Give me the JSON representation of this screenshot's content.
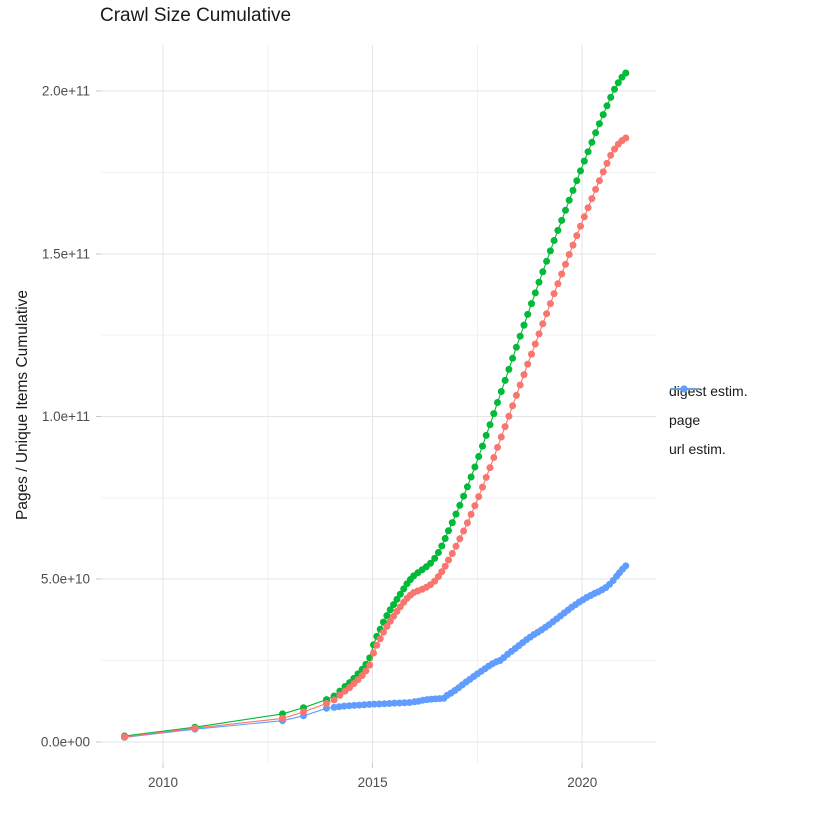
{
  "chart_data": {
    "type": "line-scatter",
    "title": "Crawl Size Cumulative",
    "xlabel": "",
    "ylabel": "Pages / Unique Items Cumulative",
    "grid": true,
    "legend_position": "right",
    "x_domain": [
      2008.52,
      2021.76
    ],
    "y_domain_e9": [
      -6.5,
      214.2
    ],
    "x_major_ticks": [
      {
        "value": 2010,
        "label": "2010"
      },
      {
        "value": 2015,
        "label": "2015"
      },
      {
        "value": 2020,
        "label": "2020"
      }
    ],
    "x_minor_ticks": [
      2012.5,
      2017.5
    ],
    "y_major_ticks_e9": [
      {
        "value": 0,
        "label": "0.0e+00"
      },
      {
        "value": 50,
        "label": "5.0e+10"
      },
      {
        "value": 100,
        "label": "1.0e+11"
      },
      {
        "value": 150,
        "label": "1.5e+11"
      },
      {
        "value": 200,
        "label": "2.0e+11"
      }
    ],
    "y_minor_ticks_e9": [
      25,
      75,
      125,
      175
    ],
    "draw_order": [
      1,
      2,
      0
    ],
    "series": [
      {
        "name": "digest estim.",
        "color": "#F8766D",
        "points": [
          [
            2009.08,
            1.5
          ],
          [
            2010.76,
            4.2
          ],
          [
            2012.85,
            7.2
          ],
          [
            2013.35,
            9.2
          ],
          [
            2013.9,
            11.8
          ],
          [
            2014.08,
            12.9
          ],
          [
            2014.22,
            14.3
          ],
          [
            2014.34,
            15.6
          ],
          [
            2014.45,
            16.7
          ],
          [
            2014.55,
            17.9
          ],
          [
            2014.65,
            19.1
          ],
          [
            2014.75,
            20.4
          ],
          [
            2014.84,
            21.8
          ],
          [
            2014.93,
            23.6
          ],
          [
            2015.02,
            27.3
          ],
          [
            2015.1,
            29.7
          ],
          [
            2015.18,
            31.7
          ],
          [
            2015.26,
            33.7
          ],
          [
            2015.34,
            35.5
          ],
          [
            2015.42,
            37.1
          ],
          [
            2015.5,
            38.6
          ],
          [
            2015.58,
            40.1
          ],
          [
            2015.66,
            41.5
          ],
          [
            2015.74,
            42.9
          ],
          [
            2015.82,
            44.1
          ],
          [
            2015.9,
            45.1
          ],
          [
            2015.98,
            45.9
          ],
          [
            2016.08,
            46.4
          ],
          [
            2016.18,
            46.9
          ],
          [
            2016.28,
            47.5
          ],
          [
            2016.38,
            48.3
          ],
          [
            2016.48,
            49.4
          ],
          [
            2016.57,
            50.8
          ],
          [
            2016.65,
            52.3
          ],
          [
            2016.73,
            54.0
          ],
          [
            2016.81,
            55.9
          ],
          [
            2016.9,
            57.9
          ],
          [
            2016.99,
            60.1
          ],
          [
            2017.08,
            62.4
          ],
          [
            2017.17,
            64.8
          ],
          [
            2017.26,
            67.3
          ],
          [
            2017.35,
            69.9
          ],
          [
            2017.44,
            72.6
          ],
          [
            2017.53,
            75.4
          ],
          [
            2017.62,
            78.3
          ],
          [
            2017.71,
            81.3
          ],
          [
            2017.8,
            84.3
          ],
          [
            2017.89,
            87.4
          ],
          [
            2017.98,
            90.5
          ],
          [
            2018.07,
            93.7
          ],
          [
            2018.16,
            96.9
          ],
          [
            2018.25,
            100.1
          ],
          [
            2018.34,
            103.3
          ],
          [
            2018.43,
            106.5
          ],
          [
            2018.52,
            109.7
          ],
          [
            2018.61,
            112.9
          ],
          [
            2018.7,
            116.1
          ],
          [
            2018.79,
            119.2
          ],
          [
            2018.88,
            122.3
          ],
          [
            2018.97,
            125.4
          ],
          [
            2019.06,
            128.5
          ],
          [
            2019.15,
            131.6
          ],
          [
            2019.24,
            134.7
          ],
          [
            2019.33,
            137.8
          ],
          [
            2019.42,
            140.8
          ],
          [
            2019.51,
            143.8
          ],
          [
            2019.6,
            146.8
          ],
          [
            2019.69,
            149.8
          ],
          [
            2019.78,
            152.7
          ],
          [
            2019.87,
            155.6
          ],
          [
            2019.96,
            158.5
          ],
          [
            2020.05,
            161.4
          ],
          [
            2020.14,
            164.2
          ],
          [
            2020.23,
            167.0
          ],
          [
            2020.32,
            169.8
          ],
          [
            2020.41,
            172.5
          ],
          [
            2020.5,
            175.2
          ],
          [
            2020.59,
            177.8
          ],
          [
            2020.68,
            180.3
          ],
          [
            2020.77,
            182.2
          ],
          [
            2020.86,
            183.7
          ],
          [
            2020.95,
            184.8
          ],
          [
            2021.04,
            185.6
          ]
        ]
      },
      {
        "name": "page",
        "color": "#00BA38",
        "points": [
          [
            2009.08,
            1.8
          ],
          [
            2010.76,
            4.5
          ],
          [
            2012.85,
            8.6
          ],
          [
            2013.35,
            10.5
          ],
          [
            2013.9,
            13.0
          ],
          [
            2014.08,
            14.1
          ],
          [
            2014.22,
            15.6
          ],
          [
            2014.34,
            17.0
          ],
          [
            2014.45,
            18.2
          ],
          [
            2014.55,
            19.5
          ],
          [
            2014.65,
            20.9
          ],
          [
            2014.75,
            22.3
          ],
          [
            2014.84,
            23.8
          ],
          [
            2014.93,
            25.8
          ],
          [
            2015.02,
            29.8
          ],
          [
            2015.1,
            32.4
          ],
          [
            2015.18,
            34.6
          ],
          [
            2015.26,
            36.8
          ],
          [
            2015.34,
            38.8
          ],
          [
            2015.42,
            40.6
          ],
          [
            2015.5,
            42.2
          ],
          [
            2015.58,
            43.8
          ],
          [
            2015.66,
            45.4
          ],
          [
            2015.74,
            47.0
          ],
          [
            2015.82,
            48.6
          ],
          [
            2015.9,
            49.9
          ],
          [
            2015.98,
            51.0
          ],
          [
            2016.08,
            52.0
          ],
          [
            2016.18,
            52.9
          ],
          [
            2016.28,
            53.8
          ],
          [
            2016.38,
            54.9
          ],
          [
            2016.48,
            56.4
          ],
          [
            2016.57,
            58.2
          ],
          [
            2016.65,
            60.2
          ],
          [
            2016.73,
            62.5
          ],
          [
            2016.81,
            64.9
          ],
          [
            2016.9,
            67.4
          ],
          [
            2016.99,
            70.0
          ],
          [
            2017.08,
            72.7
          ],
          [
            2017.17,
            75.5
          ],
          [
            2017.26,
            78.4
          ],
          [
            2017.35,
            81.4
          ],
          [
            2017.44,
            84.5
          ],
          [
            2017.53,
            87.7
          ],
          [
            2017.62,
            90.9
          ],
          [
            2017.71,
            94.2
          ],
          [
            2017.8,
            97.5
          ],
          [
            2017.89,
            100.9
          ],
          [
            2017.98,
            104.3
          ],
          [
            2018.07,
            107.7
          ],
          [
            2018.16,
            111.1
          ],
          [
            2018.25,
            114.5
          ],
          [
            2018.34,
            117.9
          ],
          [
            2018.43,
            121.3
          ],
          [
            2018.52,
            124.7
          ],
          [
            2018.61,
            128.1
          ],
          [
            2018.7,
            131.4
          ],
          [
            2018.79,
            134.7
          ],
          [
            2018.88,
            138.0
          ],
          [
            2018.97,
            141.3
          ],
          [
            2019.06,
            144.5
          ],
          [
            2019.15,
            147.7
          ],
          [
            2019.24,
            150.9
          ],
          [
            2019.33,
            154.1
          ],
          [
            2019.42,
            157.2
          ],
          [
            2019.51,
            160.3
          ],
          [
            2019.6,
            163.4
          ],
          [
            2019.69,
            166.5
          ],
          [
            2019.78,
            169.5
          ],
          [
            2019.87,
            172.5
          ],
          [
            2019.96,
            175.5
          ],
          [
            2020.05,
            178.5
          ],
          [
            2020.14,
            181.4
          ],
          [
            2020.23,
            184.3
          ],
          [
            2020.32,
            187.2
          ],
          [
            2020.41,
            190.0
          ],
          [
            2020.5,
            192.8
          ],
          [
            2020.59,
            195.5
          ],
          [
            2020.68,
            198.1
          ],
          [
            2020.77,
            200.6
          ],
          [
            2020.86,
            202.6
          ],
          [
            2020.95,
            204.3
          ],
          [
            2021.04,
            205.6
          ]
        ]
      },
      {
        "name": "url estim.",
        "color": "#619CFF",
        "points": [
          [
            2009.08,
            1.4
          ],
          [
            2010.76,
            3.9
          ],
          [
            2012.85,
            6.5
          ],
          [
            2013.35,
            8.0
          ],
          [
            2013.9,
            10.3
          ],
          [
            2014.08,
            10.6
          ],
          [
            2014.2,
            10.8
          ],
          [
            2014.32,
            11.0
          ],
          [
            2014.44,
            11.1
          ],
          [
            2014.56,
            11.2
          ],
          [
            2014.68,
            11.3
          ],
          [
            2014.8,
            11.4
          ],
          [
            2014.92,
            11.5
          ],
          [
            2015.04,
            11.6
          ],
          [
            2015.16,
            11.65
          ],
          [
            2015.28,
            11.7
          ],
          [
            2015.4,
            11.8
          ],
          [
            2015.52,
            11.9
          ],
          [
            2015.64,
            11.95
          ],
          [
            2015.76,
            12.0
          ],
          [
            2015.88,
            12.1
          ],
          [
            2016.0,
            12.3
          ],
          [
            2016.1,
            12.5
          ],
          [
            2016.2,
            12.8
          ],
          [
            2016.3,
            13.0
          ],
          [
            2016.4,
            13.1
          ],
          [
            2016.5,
            13.2
          ],
          [
            2016.6,
            13.3
          ],
          [
            2016.7,
            13.4
          ],
          [
            2016.78,
            14.3
          ],
          [
            2016.87,
            15.0
          ],
          [
            2016.96,
            15.8
          ],
          [
            2017.05,
            16.6
          ],
          [
            2017.14,
            17.5
          ],
          [
            2017.23,
            18.4
          ],
          [
            2017.32,
            19.2
          ],
          [
            2017.41,
            20.1
          ],
          [
            2017.5,
            20.9
          ],
          [
            2017.59,
            21.7
          ],
          [
            2017.68,
            22.5
          ],
          [
            2017.77,
            23.3
          ],
          [
            2017.86,
            24.0
          ],
          [
            2017.95,
            24.6
          ],
          [
            2018.04,
            25.0
          ],
          [
            2018.13,
            25.9
          ],
          [
            2018.22,
            26.9
          ],
          [
            2018.31,
            27.8
          ],
          [
            2018.4,
            28.7
          ],
          [
            2018.49,
            29.6
          ],
          [
            2018.58,
            30.5
          ],
          [
            2018.67,
            31.4
          ],
          [
            2018.76,
            32.2
          ],
          [
            2018.85,
            33.0
          ],
          [
            2018.94,
            33.7
          ],
          [
            2019.03,
            34.4
          ],
          [
            2019.12,
            35.2
          ],
          [
            2019.21,
            36.0
          ],
          [
            2019.3,
            36.9
          ],
          [
            2019.39,
            37.8
          ],
          [
            2019.48,
            38.7
          ],
          [
            2019.57,
            39.6
          ],
          [
            2019.66,
            40.5
          ],
          [
            2019.75,
            41.4
          ],
          [
            2019.84,
            42.2
          ],
          [
            2019.93,
            43.0
          ],
          [
            2020.02,
            43.7
          ],
          [
            2020.11,
            44.4
          ],
          [
            2020.2,
            45.0
          ],
          [
            2020.29,
            45.6
          ],
          [
            2020.38,
            46.1
          ],
          [
            2020.47,
            46.7
          ],
          [
            2020.56,
            47.4
          ],
          [
            2020.65,
            48.4
          ],
          [
            2020.74,
            49.6
          ],
          [
            2020.82,
            50.9
          ],
          [
            2020.89,
            52.0
          ],
          [
            2020.96,
            53.1
          ],
          [
            2021.04,
            54.1
          ]
        ]
      }
    ],
    "style": {
      "grid_major_color": "#e4e4e4",
      "grid_minor_color": "#f1f1f1",
      "tick_color": "#c9c9c9",
      "tick_label_color": "#4d4d4d",
      "text_color": "#1a1a1a",
      "background": "#ffffff",
      "point_radius": 3.5
    }
  }
}
